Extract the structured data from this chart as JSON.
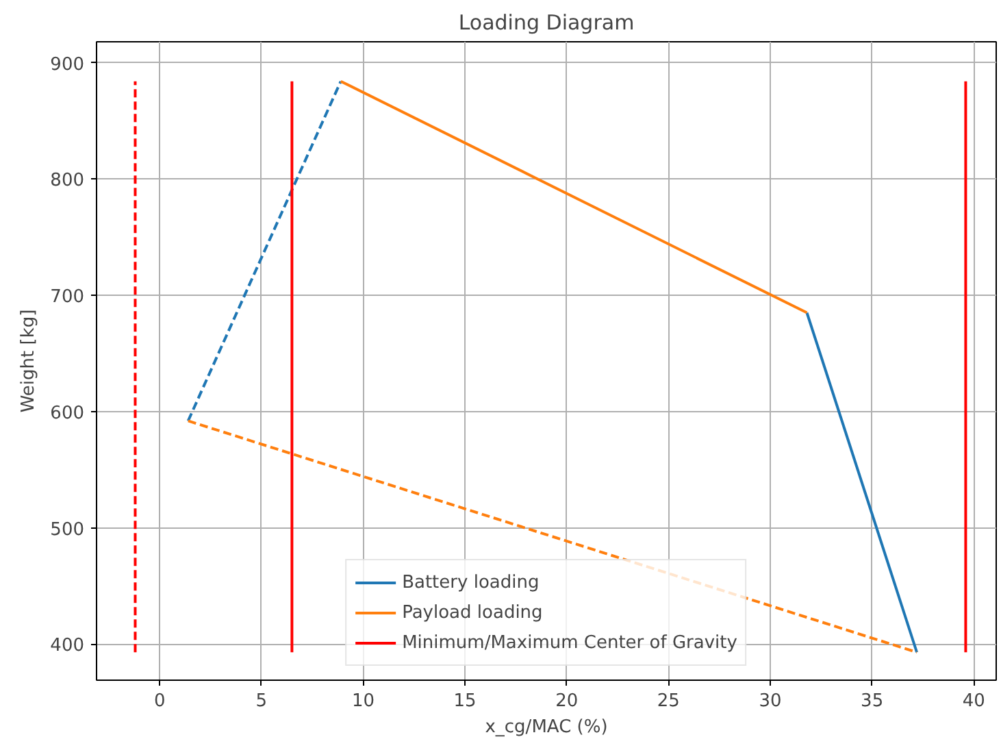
{
  "chart_data": {
    "type": "line",
    "title": "Loading Diagram",
    "xlabel": "x_cg/MAC (%)",
    "ylabel": "Weight [kg]",
    "xlim": [
      -3.1,
      41.1
    ],
    "ylim": [
      369,
      918
    ],
    "xticks": [
      0,
      5,
      10,
      15,
      20,
      25,
      30,
      35,
      40
    ],
    "yticks": [
      400,
      500,
      600,
      700,
      800,
      900
    ],
    "grid": true,
    "legend": "bottom",
    "marker": "none",
    "series": [
      {
        "name": "Battery loading",
        "color": "#1f77b4",
        "line_style": "solid",
        "x": [
          31.8,
          37.2
        ],
        "values": [
          685,
          393
        ]
      },
      {
        "color": "#1f77b4",
        "line_style": "dashed",
        "x": [
          1.4,
          8.9
        ],
        "values": [
          592,
          884
        ]
      },
      {
        "name": "Payload loading",
        "color": "#ff7f0e",
        "line_style": "solid",
        "x": [
          8.9,
          31.8
        ],
        "values": [
          884,
          685
        ]
      },
      {
        "color": "#ff7f0e",
        "line_style": "dashed",
        "x": [
          1.4,
          37.2
        ],
        "values": [
          592,
          393
        ]
      },
      {
        "name": "Minimum/Maximum Center of Gravity",
        "color": "#ff0000",
        "line_style": "solid",
        "x": [
          6.5,
          6.5
        ],
        "values": [
          393,
          884
        ]
      },
      {
        "color": "#ff0000",
        "line_style": "solid",
        "x": [
          39.6,
          39.6
        ],
        "values": [
          393,
          884
        ]
      },
      {
        "color": "#ff0000",
        "line_style": "dashed",
        "x": [
          -1.2,
          -1.2
        ],
        "values": [
          393,
          884
        ]
      }
    ]
  }
}
